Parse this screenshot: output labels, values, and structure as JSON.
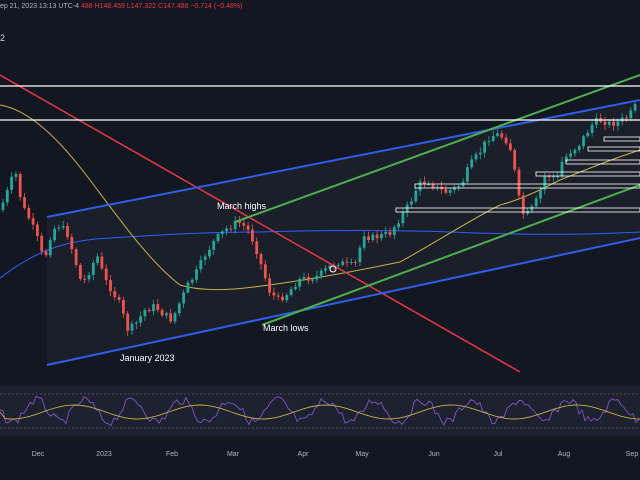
{
  "header": {
    "timestamp": "ep 21, 2023 13:13 UTC-4",
    "ohlc": "488  H148.459  L147.322  C147.488  −0.714 (−0.48%)",
    "left_label": "2"
  },
  "colors": {
    "background": "#131722",
    "bull": "#26a69a",
    "bear": "#ef5350",
    "channel_blue": "#2f5ee8",
    "channel_green": "#4caf50",
    "trend_red": "#e53945",
    "horizontal": "#ffffff",
    "sma_long": "#2962ff",
    "sma_short": "#c8b048",
    "rsi": "#7e57c2",
    "rsi_signal": "#c8b048"
  },
  "chart_data": {
    "type": "candlestick",
    "x_axis_labels": [
      "Dec",
      "2023",
      "Feb",
      "Mar",
      "Apr",
      "May",
      "Jun",
      "Jul",
      "Aug",
      "Sep"
    ],
    "annotations": [
      "March highs",
      "March lows",
      "January 2023"
    ],
    "indicators": [
      "RSI",
      "moving-average-long",
      "moving-average-short"
    ],
    "grid": false,
    "legend": "none"
  }
}
